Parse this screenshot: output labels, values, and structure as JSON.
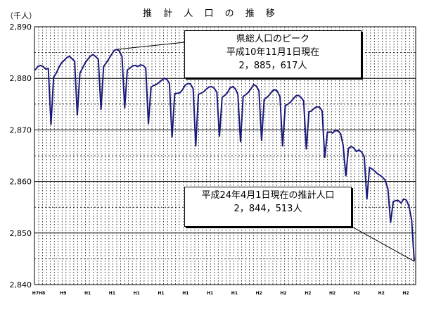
{
  "title": "推 計 人 口 の 推 移",
  "unit_label": "（千人）",
  "annotations": {
    "peak": {
      "line1": "県総人口のピーク",
      "line2": "平成10年11月1日現在",
      "line3": "2，885，617人"
    },
    "latest": {
      "line1": "平成24年4月1日現在の推計人口",
      "line2": "2，844，513人"
    }
  },
  "colors": {
    "line": "#1a1a7a",
    "grid": "#000000",
    "background": "#ffffff"
  },
  "chart_data": {
    "type": "line",
    "title": "推 計 人 口 の 推 移",
    "ylabel": "（千人）",
    "ylim": [
      2840,
      2890
    ],
    "yticks": [
      2840,
      2850,
      2860,
      2870,
      2880,
      2890
    ],
    "ytick_labels": [
      "2,840",
      "2,850",
      "2,860",
      "2,870",
      "2,880",
      "2,890"
    ],
    "xtick_labels": [
      "H7H8",
      "H9",
      "H1",
      "H1",
      "H1",
      "H1",
      "H1",
      "H1",
      "H1",
      "H2",
      "H2",
      "H2",
      "H2",
      "H2",
      "H2",
      "H2"
    ],
    "grid": "dotted monthly verticals, solid horizontals",
    "series": [
      {
        "values": [
          2881.6,
          2882.3,
          2882.5,
          2882.3,
          2881.8,
          2881.9,
          2871.0,
          2880.2,
          2881.0,
          2882.1,
          2883.0,
          2883.5,
          2884.0,
          2884.3,
          2883.8,
          2883.3,
          2872.8,
          2881.0,
          2882.0,
          2883.0,
          2883.7,
          2884.3,
          2884.6,
          2884.2,
          2883.7,
          2873.9,
          2882.3,
          2883.0,
          2883.8,
          2884.6,
          2885.4,
          2885.617,
          2885.3,
          2884.2,
          2874.2,
          2881.6,
          2882.0,
          2882.4,
          2882.5,
          2882.3,
          2882.6,
          2882.5,
          2882.0,
          2871.1,
          2878.3,
          2878.6,
          2878.8,
          2879.2,
          2879.6,
          2880.0,
          2879.8,
          2879.0,
          2868.5,
          2877.0,
          2877.1,
          2877.2,
          2877.8,
          2878.7,
          2879.0,
          2878.9,
          2878.0,
          2866.8,
          2876.9,
          2877.1,
          2877.4,
          2877.9,
          2878.3,
          2878.4,
          2878.1,
          2877.3,
          2868.7,
          2876.3,
          2876.7,
          2877.2,
          2878.1,
          2878.4,
          2878.0,
          2876.9,
          2867.6,
          2876.5,
          2876.8,
          2877.3,
          2878.0,
          2878.8,
          2878.5,
          2877.6,
          2867.9,
          2875.9,
          2876.3,
          2876.8,
          2877.5,
          2877.8,
          2877.5,
          2876.4,
          2866.8,
          2874.7,
          2875.0,
          2875.4,
          2876.0,
          2876.6,
          2876.7,
          2876.3,
          2875.6,
          2866.2,
          2873.5,
          2873.7,
          2874.2,
          2874.5,
          2874.4,
          2873.7,
          2864.6,
          2869.5,
          2869.6,
          2869.4,
          2869.9,
          2869.8,
          2869.3,
          2867.0,
          2861.0,
          2866.4,
          2866.8,
          2866.5,
          2865.8,
          2866.1,
          2865.7,
          2864.8,
          2856.5,
          2862.7,
          2862.4,
          2862.0,
          2861.5,
          2861.2,
          2860.8,
          2860.2,
          2858.5,
          2852.0,
          2856.1,
          2856.3,
          2856.3,
          2855.8,
          2856.6,
          2856.4,
          2855.2,
          2852.5,
          2844.513
        ]
      }
    ]
  }
}
